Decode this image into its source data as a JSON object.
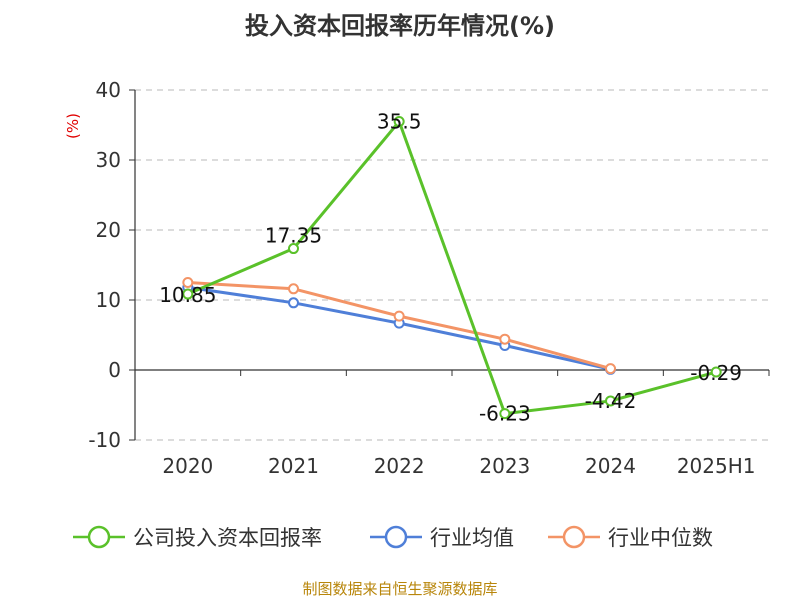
{
  "chart_data": {
    "type": "line",
    "title": "投入资本回报率历年情况(%)",
    "unit_label": "(%)",
    "categories": [
      "2020",
      "2021",
      "2022",
      "2023",
      "2024",
      "2025H1"
    ],
    "ylim": [
      -10,
      40
    ],
    "yticks": [
      -10,
      0,
      10,
      20,
      30,
      40
    ],
    "grid": true,
    "legend_position": "bottom",
    "series": [
      {
        "name": "公司投入资本回报率",
        "color": "#5ac12a",
        "values": [
          10.85,
          17.35,
          35.5,
          -6.23,
          -4.42,
          -0.29
        ],
        "labels": [
          "10.85",
          "17.35",
          "35.5",
          "-6.23",
          "-4.42",
          "-0.29"
        ]
      },
      {
        "name": "行业均值",
        "color": "#4f7fd8",
        "values": [
          11.8,
          9.6,
          6.7,
          3.5,
          0.1,
          null
        ]
      },
      {
        "name": "行业中位数",
        "color": "#f39466",
        "values": [
          12.5,
          11.6,
          7.7,
          4.4,
          0.2,
          null
        ]
      }
    ]
  },
  "footer": {
    "source": "制图数据来自恒生聚源数据库"
  }
}
